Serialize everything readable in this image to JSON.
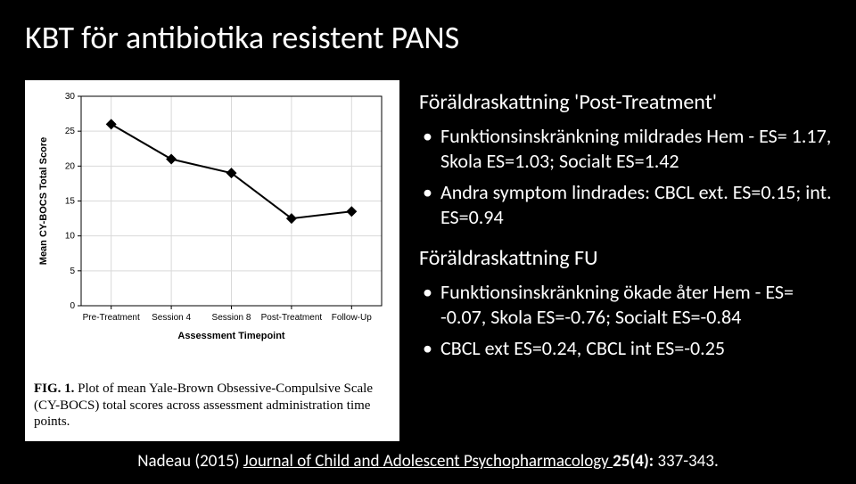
{
  "title": "KBT för antibiotika resistent PANS",
  "content": {
    "section1_heading": "Föräldraskattning 'Post-Treatment'",
    "section1_bullets": [
      "Funktionsinskränkning mildrades Hem - ES= 1.17, Skola ES=1.03; Socialt ES=1.42",
      "Andra symptom lindrades:    CBCL ext. ES=0.15; int. ES=0.94"
    ],
    "section2_heading": "Föräldraskattning FU",
    "section2_bullets": [
      "Funktionsinskränkning ökade åter Hem - ES= -0.07, Skola ES=-0.76; Socialt ES=-0.84",
      "CBCL ext ES=0.24, CBCL int ES=-0.25"
    ]
  },
  "citation": {
    "author_year": "Nadeau (2015) ",
    "journal": "Journal of Child and Adolescent Psychopharmacology ",
    "volume": "25(4):",
    "pages": " 337-343."
  },
  "figure": {
    "caption_label": "FIG. 1.",
    "caption_text": "   Plot of mean Yale-Brown Obsessive-Compulsive Scale (CY-BOCS) total scores across assessment administration time points.",
    "chart": {
      "type": "line",
      "background_color": "#ffffff",
      "plot_bg": "#ffffff",
      "grid_color": "#d9d9d9",
      "axis_color": "#000000",
      "line_color": "#000000",
      "marker_style": "diamond",
      "marker_size": 6,
      "line_width": 2,
      "x_categories": [
        "Pre-Treatment",
        "Session 4",
        "Session 8",
        "Post-Treatment",
        "Follow-Up"
      ],
      "x_title": "Assessment Timepoint",
      "y_title": "Mean CY-BOCS Total Score",
      "ylim": [
        0,
        30
      ],
      "ytick_step": 5,
      "y_values": [
        26,
        21,
        19,
        12.5,
        13.5
      ],
      "label_fontsize": 11,
      "tick_fontsize": 10
    }
  }
}
